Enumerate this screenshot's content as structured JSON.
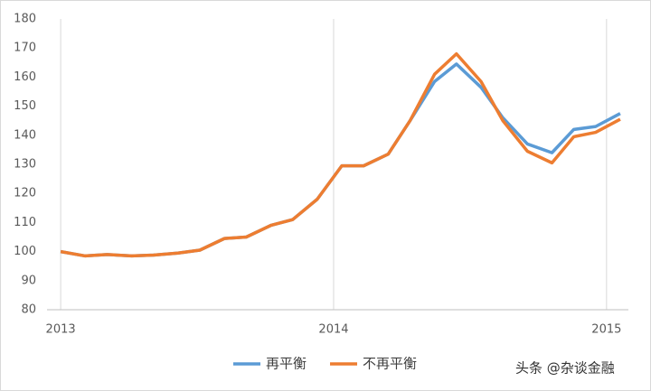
{
  "chart_data": {
    "type": "line",
    "x": [
      2013.0,
      2013.09,
      2013.17,
      2013.26,
      2013.34,
      2013.43,
      2013.51,
      2013.6,
      2013.68,
      2013.77,
      2013.85,
      2013.94,
      2014.03,
      2014.11,
      2014.2,
      2014.28,
      2014.37,
      2014.45,
      2014.54,
      2014.62,
      2014.71,
      2014.8,
      2014.88,
      2014.96,
      2015.05
    ],
    "series": [
      {
        "name": "再平衡",
        "color": "#5b9bd5",
        "values": [
          100,
          98.5,
          99,
          98.5,
          98.8,
          99.5,
          100.5,
          104.5,
          105,
          109,
          111,
          118,
          129.5,
          129.5,
          133.5,
          145,
          158.5,
          164.5,
          156.5,
          146,
          137,
          134,
          142,
          143,
          147.5
        ]
      },
      {
        "name": "不再平衡",
        "color": "#ed7d31",
        "values": [
          100,
          98.5,
          99,
          98.5,
          98.8,
          99.5,
          100.5,
          104.5,
          105,
          109,
          111,
          118,
          129.5,
          129.5,
          133.5,
          145,
          161,
          168,
          158.5,
          145,
          134.5,
          130.5,
          139.5,
          141,
          145.5
        ]
      }
    ],
    "xlim": [
      2012.95,
      2015.08
    ],
    "xticks": [
      2013,
      2014,
      2015
    ],
    "ylim": [
      80,
      180
    ],
    "yticks": [
      80,
      90,
      100,
      110,
      120,
      130,
      140,
      150,
      160,
      170,
      180
    ],
    "xgrid": true,
    "legend": "bottom",
    "watermark": "头条 @杂谈金融"
  }
}
